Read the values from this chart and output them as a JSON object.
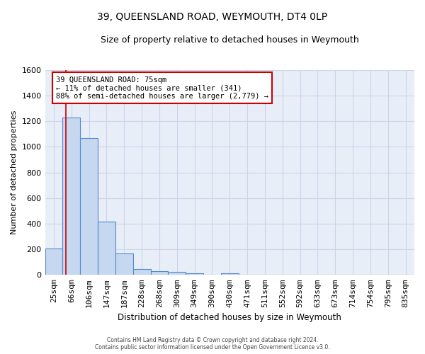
{
  "title": "39, QUEENSLAND ROAD, WEYMOUTH, DT4 0LP",
  "subtitle": "Size of property relative to detached houses in Weymouth",
  "xlabel": "Distribution of detached houses by size in Weymouth",
  "ylabel": "Number of detached properties",
  "categories": [
    "25sqm",
    "66sqm",
    "106sqm",
    "147sqm",
    "187sqm",
    "228sqm",
    "268sqm",
    "309sqm",
    "349sqm",
    "390sqm",
    "430sqm",
    "471sqm",
    "511sqm",
    "552sqm",
    "592sqm",
    "633sqm",
    "673sqm",
    "714sqm",
    "754sqm",
    "795sqm",
    "835sqm"
  ],
  "values": [
    205,
    1230,
    1070,
    415,
    165,
    47,
    28,
    22,
    15,
    0,
    15,
    0,
    0,
    0,
    0,
    0,
    0,
    0,
    0,
    0,
    0
  ],
  "bar_color": "#c5d8f0",
  "bar_edge_color": "#5588cc",
  "grid_color": "#ccd5e8",
  "background_color": "#e8eef8",
  "ylim": [
    0,
    1600
  ],
  "yticks": [
    0,
    200,
    400,
    600,
    800,
    1000,
    1200,
    1400,
    1600
  ],
  "property_line_x": 0.7,
  "property_line_color": "#cc0000",
  "annotation_title": "39 QUEENSLAND ROAD: 75sqm",
  "annotation_line1": "← 11% of detached houses are smaller (341)",
  "annotation_line2": "88% of semi-detached houses are larger (2,779) →",
  "footer1": "Contains HM Land Registry data © Crown copyright and database right 2024.",
  "footer2": "Contains public sector information licensed under the Open Government Licence v3.0."
}
